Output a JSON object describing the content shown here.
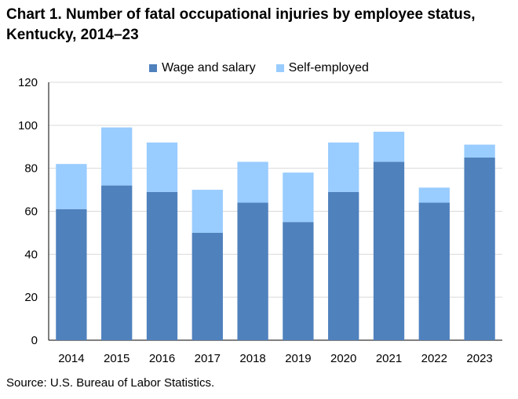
{
  "chart_data": {
    "type": "bar",
    "stacked": true,
    "title": "Chart 1. Number of fatal occupational injuries by employee status, Kentucky, 2014–23",
    "categories": [
      "2014",
      "2015",
      "2016",
      "2017",
      "2018",
      "2019",
      "2020",
      "2021",
      "2022",
      "2023"
    ],
    "series": [
      {
        "name": "Wage and salary",
        "color": "#4f81bd",
        "values": [
          61,
          72,
          69,
          50,
          64,
          55,
          69,
          83,
          64,
          85
        ]
      },
      {
        "name": "Self-employed",
        "color": "#99ccff",
        "values": [
          21,
          27,
          23,
          20,
          19,
          23,
          23,
          14,
          7,
          6
        ]
      }
    ],
    "ylim": [
      0,
      120
    ],
    "yticks": [
      "0",
      "20",
      "40",
      "60",
      "80",
      "100",
      "120"
    ],
    "grid": true,
    "legend_position": "top-center",
    "source": "Source: U.S. Bureau of Labor Statistics."
  }
}
